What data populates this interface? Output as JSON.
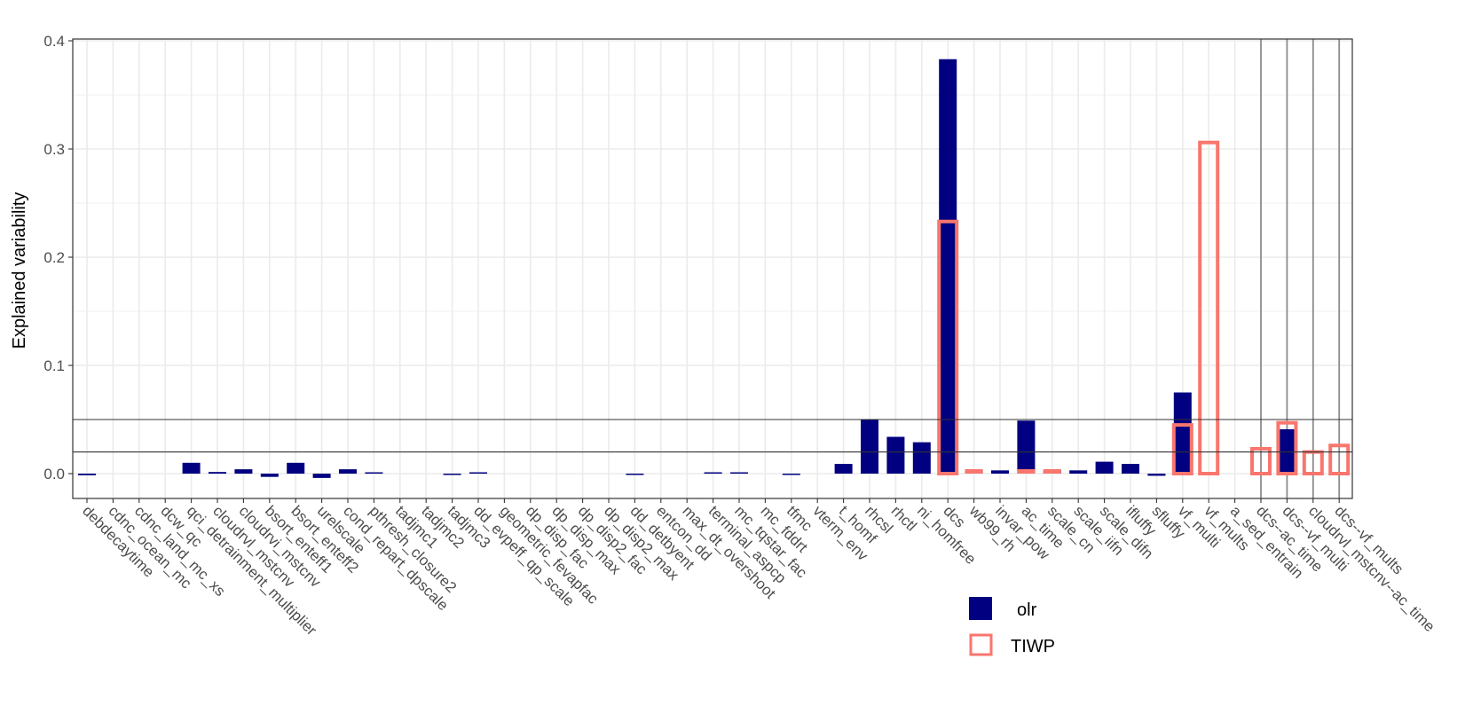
{
  "chart_data": {
    "type": "bar",
    "title": "",
    "xlabel": "",
    "ylabel": "Explained variability",
    "ylim": [
      -0.022,
      0.402
    ],
    "yticks": [
      0.0,
      0.1,
      0.2,
      0.3,
      0.4
    ],
    "ytick_labels": [
      "0.0",
      "0.1",
      "0.2",
      "0.3",
      "0.4"
    ],
    "grid": true,
    "threshold_lines": [
      0.02,
      0.05
    ],
    "separator_after_category": "a_sed_entrain",
    "legend_position": "bottom-right",
    "categories": [
      "debdecaytime",
      "cdnc_ocean_mc",
      "cdnc_land_mc_xs",
      "dcw_qc",
      "qci_detrainment_multiplier",
      "cloudrvl_mstcnv",
      "cloudrvi_mstcnv",
      "bsort_enteff1",
      "bsort_enteff2",
      "urelscale",
      "cond_repart_dpscale",
      "pthresh_closure2",
      "tadjmc1",
      "tadjmc2",
      "tadjmc3",
      "dd_evpeff_qp_scale",
      "geometric_fevapfac",
      "dp_disp_fac",
      "dp_disp_max",
      "dp_disp2_fac",
      "dp_disp2_max",
      "dd_detbyent",
      "entcon_dd",
      "max_dt_overshoot",
      "terminal_aspcp",
      "mc_tqstar_fac",
      "mc_fddrt",
      "tfmc",
      "vterm_env",
      "t_homf",
      "rhcsl",
      "rhctl",
      "ni_homfree",
      "dcs",
      "wb99_rh",
      "invar_pow",
      "ac_time",
      "scale_cn",
      "scale_iifn",
      "scale_difn",
      "ifluffy",
      "sfluffy",
      "vf_multi",
      "vf_mults",
      "a_sed_entrain",
      "dcs--ac_time",
      "dcs--vf_multi",
      "cloudrvl_mstcnv--ac_time",
      "dcs--vf_mults"
    ],
    "series": [
      {
        "name": "olr",
        "color": "#000080",
        "values": [
          -0.0015,
          0,
          0,
          0,
          0.01,
          0.0015,
          0.004,
          -0.003,
          0.01,
          -0.004,
          0.004,
          0.0003,
          0,
          0,
          -0.0012,
          0.001,
          0,
          0,
          0,
          0,
          0,
          -0.0005,
          0,
          0,
          0.0006,
          0.0006,
          0,
          -0.0005,
          0,
          0.009,
          0.05,
          0.034,
          0.029,
          0.383,
          0.003,
          0.003,
          0.049,
          0.003,
          0.003,
          0.011,
          0.009,
          -0.002,
          0.075,
          -0.0005,
          0,
          0,
          0.041,
          0,
          0
        ]
      },
      {
        "name": "TIWP",
        "color": "#F8766D",
        "values": [
          0,
          0,
          0,
          0,
          0,
          0,
          0,
          0,
          0,
          0,
          0,
          0,
          0,
          0,
          0,
          0,
          0,
          0,
          0,
          0,
          0,
          0,
          0,
          0,
          0,
          0,
          0,
          0,
          0,
          0,
          0,
          0,
          0,
          0.233,
          0.003,
          0,
          0.003,
          0.003,
          0,
          0,
          0,
          0,
          0.045,
          0.306,
          0,
          0.023,
          0.047,
          0.02,
          0.026
        ]
      }
    ]
  }
}
